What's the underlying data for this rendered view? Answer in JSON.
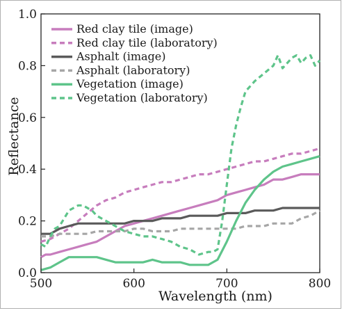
{
  "chart_data": {
    "type": "line",
    "title": "",
    "xlabel": "Wavelength (nm)",
    "ylabel": "Reflectance",
    "xlim": [
      500,
      800
    ],
    "ylim": [
      0.0,
      1.0
    ],
    "xticks": [
      500,
      600,
      700,
      800
    ],
    "xtick_labels": [
      "500",
      "600",
      "700",
      "800"
    ],
    "yticks": [
      0.0,
      0.2,
      0.4,
      0.6,
      0.8,
      1.0
    ],
    "ytick_labels": [
      "0.0",
      "0.2",
      "0.4",
      "0.6",
      "0.8",
      "1.0"
    ],
    "grid": false,
    "legend_position": "top-left",
    "series": [
      {
        "name": "Red clay tile (image)",
        "color": "#c77dbd",
        "dash": "solid",
        "x": [
          500,
          505,
          510,
          520,
          530,
          540,
          550,
          560,
          570,
          580,
          590,
          600,
          610,
          620,
          630,
          640,
          650,
          660,
          670,
          680,
          690,
          700,
          710,
          720,
          730,
          740,
          750,
          760,
          770,
          780,
          790,
          800
        ],
        "y": [
          0.06,
          0.07,
          0.07,
          0.08,
          0.09,
          0.1,
          0.11,
          0.12,
          0.14,
          0.16,
          0.18,
          0.19,
          0.2,
          0.21,
          0.22,
          0.23,
          0.24,
          0.25,
          0.26,
          0.27,
          0.28,
          0.3,
          0.31,
          0.32,
          0.33,
          0.34,
          0.36,
          0.36,
          0.37,
          0.38,
          0.38,
          0.38
        ]
      },
      {
        "name": "Red clay tile (laboratory)",
        "color": "#c77dbd",
        "dash": "dashed",
        "x": [
          500,
          510,
          520,
          530,
          540,
          550,
          560,
          570,
          580,
          590,
          600,
          610,
          620,
          630,
          640,
          650,
          660,
          670,
          680,
          690,
          700,
          710,
          720,
          730,
          740,
          750,
          760,
          770,
          780,
          790,
          800
        ],
        "y": [
          0.12,
          0.13,
          0.15,
          0.17,
          0.2,
          0.23,
          0.26,
          0.28,
          0.29,
          0.31,
          0.32,
          0.33,
          0.34,
          0.35,
          0.35,
          0.36,
          0.37,
          0.38,
          0.38,
          0.39,
          0.4,
          0.41,
          0.42,
          0.43,
          0.43,
          0.44,
          0.45,
          0.46,
          0.46,
          0.47,
          0.48
        ]
      },
      {
        "name": "Asphalt (image)",
        "color": "#5a5a5a",
        "dash": "solid",
        "x": [
          500,
          510,
          520,
          530,
          540,
          550,
          560,
          570,
          580,
          590,
          600,
          610,
          620,
          630,
          640,
          650,
          660,
          670,
          680,
          690,
          700,
          710,
          720,
          730,
          740,
          750,
          760,
          770,
          780,
          790,
          800
        ],
        "y": [
          0.15,
          0.15,
          0.17,
          0.18,
          0.19,
          0.19,
          0.19,
          0.19,
          0.19,
          0.19,
          0.2,
          0.2,
          0.2,
          0.21,
          0.21,
          0.21,
          0.22,
          0.22,
          0.22,
          0.22,
          0.23,
          0.23,
          0.23,
          0.24,
          0.24,
          0.24,
          0.25,
          0.25,
          0.25,
          0.25,
          0.25
        ]
      },
      {
        "name": "Asphalt (laboratory)",
        "color": "#a6a6a6",
        "dash": "dashed",
        "x": [
          500,
          510,
          520,
          530,
          540,
          550,
          560,
          570,
          580,
          590,
          600,
          610,
          620,
          630,
          640,
          650,
          660,
          670,
          680,
          690,
          700,
          710,
          720,
          730,
          740,
          750,
          760,
          770,
          780,
          790,
          800
        ],
        "y": [
          0.14,
          0.14,
          0.15,
          0.15,
          0.15,
          0.15,
          0.16,
          0.16,
          0.16,
          0.16,
          0.17,
          0.17,
          0.16,
          0.16,
          0.16,
          0.17,
          0.17,
          0.17,
          0.17,
          0.17,
          0.17,
          0.17,
          0.18,
          0.18,
          0.18,
          0.19,
          0.19,
          0.19,
          0.21,
          0.22,
          0.24
        ]
      },
      {
        "name": "Vegetation (image)",
        "color": "#5ec48a",
        "dash": "solid",
        "x": [
          500,
          510,
          520,
          530,
          540,
          550,
          560,
          570,
          580,
          590,
          600,
          610,
          620,
          630,
          640,
          650,
          660,
          670,
          680,
          690,
          700,
          710,
          720,
          730,
          740,
          750,
          760,
          770,
          780,
          790,
          800
        ],
        "y": [
          0.01,
          0.02,
          0.04,
          0.06,
          0.06,
          0.06,
          0.06,
          0.05,
          0.04,
          0.04,
          0.04,
          0.04,
          0.05,
          0.04,
          0.04,
          0.04,
          0.03,
          0.03,
          0.03,
          0.05,
          0.12,
          0.2,
          0.27,
          0.32,
          0.36,
          0.39,
          0.41,
          0.42,
          0.43,
          0.44,
          0.45
        ]
      },
      {
        "name": "Vegetation (laboratory)",
        "color": "#5ec48a",
        "dash": "dashed",
        "x": [
          500,
          505,
          510,
          515,
          520,
          525,
          530,
          535,
          540,
          545,
          550,
          555,
          560,
          570,
          580,
          590,
          600,
          610,
          620,
          630,
          640,
          650,
          660,
          670,
          680,
          685,
          690,
          695,
          700,
          705,
          710,
          715,
          720,
          730,
          740,
          750,
          755,
          760,
          765,
          770,
          775,
          780,
          785,
          790,
          795,
          800
        ],
        "y": [
          0.11,
          0.1,
          0.14,
          0.17,
          0.18,
          0.21,
          0.24,
          0.25,
          0.26,
          0.26,
          0.25,
          0.24,
          0.22,
          0.2,
          0.18,
          0.16,
          0.15,
          0.14,
          0.14,
          0.13,
          0.12,
          0.1,
          0.09,
          0.07,
          0.08,
          0.08,
          0.09,
          0.2,
          0.34,
          0.48,
          0.57,
          0.64,
          0.7,
          0.74,
          0.77,
          0.8,
          0.84,
          0.79,
          0.81,
          0.83,
          0.84,
          0.81,
          0.83,
          0.84,
          0.8,
          0.82
        ]
      }
    ]
  }
}
